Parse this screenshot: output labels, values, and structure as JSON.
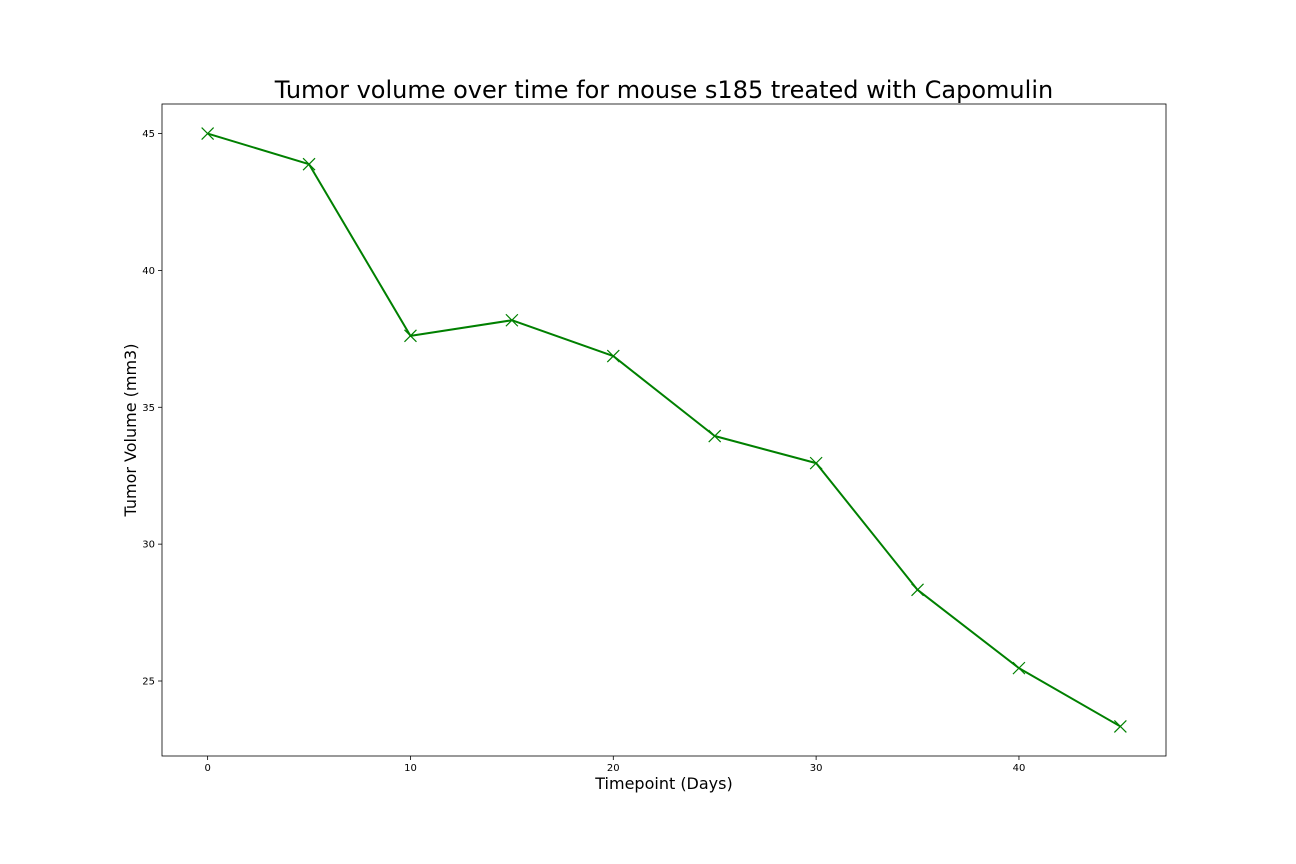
{
  "chart_data": {
    "type": "line",
    "title": "Tumor volume over time for mouse s185 treated with Capomulin",
    "xlabel": "Timepoint (Days)",
    "ylabel": "Tumor Volume (mm3)",
    "x": [
      0,
      5,
      10,
      15,
      20,
      25,
      30,
      35,
      40,
      45
    ],
    "series": [
      {
        "values": [
          45.0,
          43.88,
          37.61,
          38.18,
          36.87,
          33.95,
          32.96,
          28.33,
          25.47,
          23.34
        ],
        "color": "#008000",
        "marker": "x"
      }
    ],
    "xlim": [
      -2.25,
      47.25
    ],
    "ylim": [
      22.26,
      46.08
    ],
    "xticks": [
      0,
      10,
      20,
      30,
      40
    ],
    "yticks": [
      25,
      30,
      35,
      40,
      45
    ],
    "grid": false
  }
}
